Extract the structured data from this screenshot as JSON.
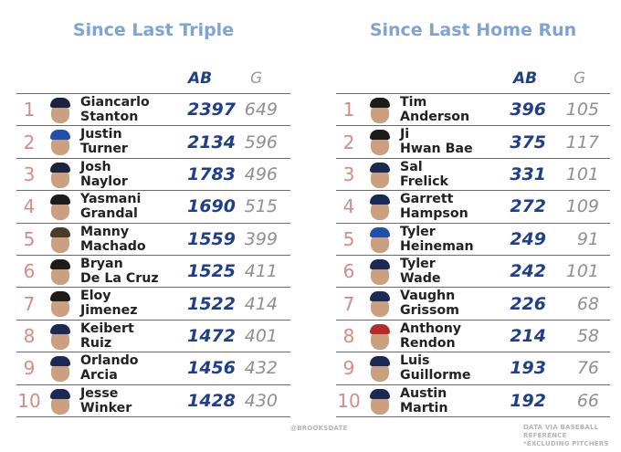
{
  "left": {
    "title": "Since Last Triple",
    "col_ab": "AB",
    "col_g": "G",
    "rows": [
      {
        "rank": "1",
        "first": "Giancarlo",
        "last": "Stanton",
        "ab": "2397",
        "g": "649",
        "cap": "#1a2340"
      },
      {
        "rank": "2",
        "first": "Justin",
        "last": "Turner",
        "ab": "2134",
        "g": "596",
        "cap": "#1f4fa8"
      },
      {
        "rank": "3",
        "first": "Josh",
        "last": "Naylor",
        "ab": "1783",
        "g": "496",
        "cap": "#1a2340"
      },
      {
        "rank": "4",
        "first": "Yasmani",
        "last": "Grandal",
        "ab": "1690",
        "g": "515",
        "cap": "#1c1c1c"
      },
      {
        "rank": "5",
        "first": "Manny",
        "last": "Machado",
        "ab": "1559",
        "g": "399",
        "cap": "#4a3a2a"
      },
      {
        "rank": "6",
        "first": "Bryan",
        "last": "De La Cruz",
        "ab": "1525",
        "g": "411",
        "cap": "#1c1c1c"
      },
      {
        "rank": "7",
        "first": "Eloy",
        "last": "Jimenez",
        "ab": "1522",
        "g": "414",
        "cap": "#1c1c1c"
      },
      {
        "rank": "8",
        "first": "Keibert",
        "last": "Ruiz",
        "ab": "1472",
        "g": "401",
        "cap": "#1a2a55"
      },
      {
        "rank": "9",
        "first": "Orlando",
        "last": "Arcia",
        "ab": "1456",
        "g": "432",
        "cap": "#1a2a55"
      },
      {
        "rank": "10",
        "first": "Jesse",
        "last": "Winker",
        "ab": "1428",
        "g": "430",
        "cap": "#1a2a55"
      }
    ]
  },
  "right": {
    "title": "Since Last Home Run",
    "col_ab": "AB",
    "col_g": "G",
    "rows": [
      {
        "rank": "1",
        "first": "Tim",
        "last": "Anderson",
        "ab": "396",
        "g": "105",
        "cap": "#1c1c1c"
      },
      {
        "rank": "2",
        "first": "Ji",
        "last": "Hwan Bae",
        "ab": "375",
        "g": "117",
        "cap": "#1c1c1c"
      },
      {
        "rank": "3",
        "first": "Sal",
        "last": "Frelick",
        "ab": "331",
        "g": "101",
        "cap": "#1a2a55"
      },
      {
        "rank": "4",
        "first": "Garrett",
        "last": "Hampson",
        "ab": "272",
        "g": "109",
        "cap": "#1a2a55"
      },
      {
        "rank": "5",
        "first": "Tyler",
        "last": "Heineman",
        "ab": "249",
        "g": "91",
        "cap": "#1f4fa8"
      },
      {
        "rank": "6",
        "first": "Tyler",
        "last": "Wade",
        "ab": "242",
        "g": "101",
        "cap": "#1a2a55"
      },
      {
        "rank": "7",
        "first": "Vaughn",
        "last": "Grissom",
        "ab": "226",
        "g": "68",
        "cap": "#1a2a55"
      },
      {
        "rank": "8",
        "first": "Anthony",
        "last": "Rendon",
        "ab": "214",
        "g": "58",
        "cap": "#b52a2a"
      },
      {
        "rank": "9",
        "first": "Luis",
        "last": "Guillorme",
        "ab": "193",
        "g": "76",
        "cap": "#1a2a55"
      },
      {
        "rank": "10",
        "first": "Austin",
        "last": "Martin",
        "ab": "192",
        "g": "66",
        "cap": "#1a2a55"
      }
    ]
  },
  "credits": {
    "handle": "@BROOKSDATE",
    "source_line1": "DATA VIA BASEBALL REFERENCE",
    "source_line2": "*EXCLUDING PITCHERS"
  }
}
